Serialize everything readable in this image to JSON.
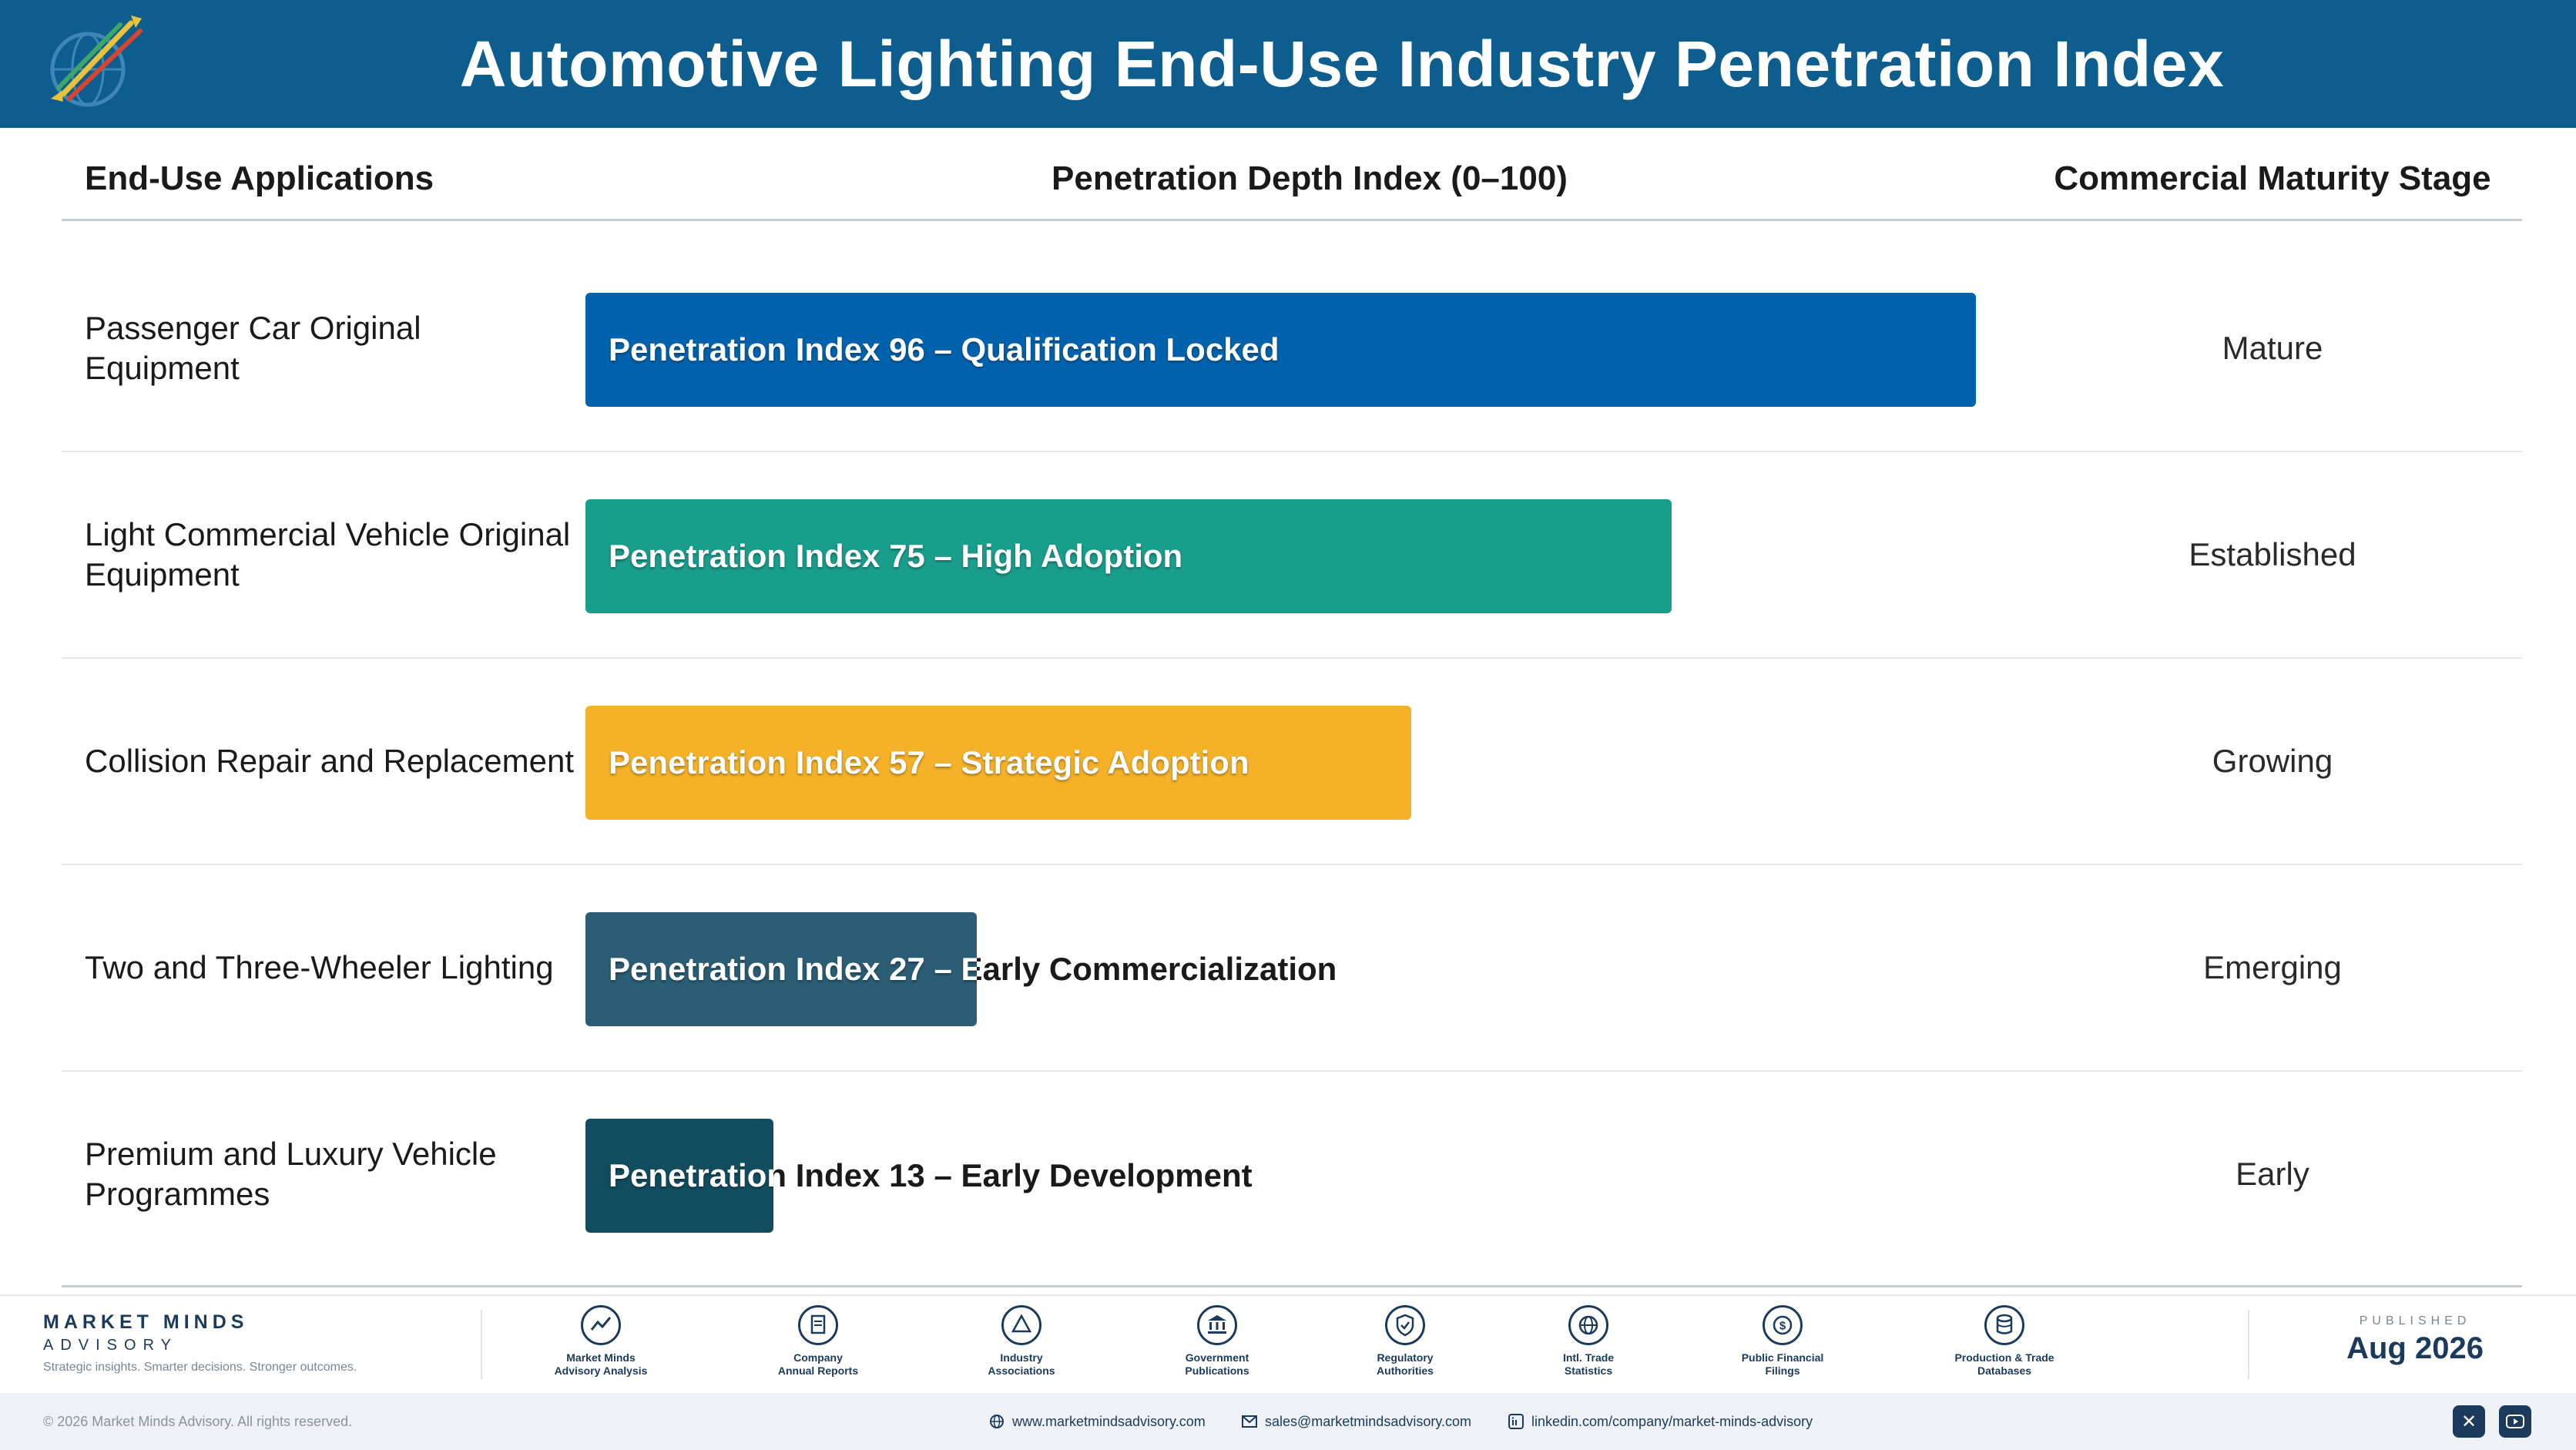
{
  "header": {
    "title": "Automotive Lighting End-Use Industry Penetration Index"
  },
  "columns": {
    "apps": "End-Use Applications",
    "depth": "Penetration Depth Index (0–100)",
    "stage": "Commercial Maturity Stage"
  },
  "rows": [
    {
      "app": "Passenger Car Original Equipment",
      "bar_label": "Penetration Index 96 – Qualification Locked",
      "stage": "Mature"
    },
    {
      "app": "Light Commercial Vehicle Original Equipment",
      "bar_label": "Penetration Index 75 – High Adoption",
      "stage": "Established"
    },
    {
      "app": "Collision Repair and Replacement",
      "bar_label": "Penetration Index 57 – Strategic Adoption",
      "stage": "Growing"
    },
    {
      "app": "Two and Three-Wheeler Lighting",
      "bar_label": "Penetration Index 27 – Early Commercialization",
      "stage": "Emerging"
    },
    {
      "app": "Premium and Luxury Vehicle Programmes",
      "bar_label": "Penetration Index 13 – Early Development",
      "stage": "Early"
    }
  ],
  "chart_data": {
    "type": "bar",
    "orientation": "horizontal",
    "title": "Automotive Lighting End-Use Industry Penetration Index",
    "xlabel": "Penetration Depth Index (0–100)",
    "xlim": [
      0,
      100
    ],
    "categories": [
      "Passenger Car Original Equipment",
      "Light Commercial Vehicle Original Equipment",
      "Collision Repair and Replacement",
      "Two and Three-Wheeler Lighting",
      "Premium and Luxury Vehicle Programmes"
    ],
    "values": [
      96,
      75,
      57,
      27,
      13
    ],
    "colors": [
      "#0062ad",
      "#1a9e8c",
      "#f5b228",
      "#2b5d74",
      "#114d5f"
    ],
    "grid": false
  },
  "footer": {
    "brand_name": "MARKET MINDS",
    "brand_sub": "ADVISORY",
    "brand_tagline": "Strategic insights. Smarter decisions. Stronger outcomes.",
    "sources": [
      {
        "line1": "Market Minds",
        "line2": "Advisory Analysis",
        "icon": "trend-icon"
      },
      {
        "line1": "Company",
        "line2": "Annual Reports",
        "icon": "document-icon"
      },
      {
        "line1": "Industry",
        "line2": "Associations",
        "icon": "network-icon"
      },
      {
        "line1": "Government",
        "line2": "Publications",
        "icon": "government-building-icon"
      },
      {
        "line1": "Regulatory",
        "line2": "Authorities",
        "icon": "shield-icon"
      },
      {
        "line1": "Intl. Trade",
        "line2": "Statistics",
        "icon": "globe-icon"
      },
      {
        "line1": "Public Financial",
        "line2": "Filings",
        "icon": "coin-icon"
      },
      {
        "line1": "Production & Trade",
        "line2": "Databases",
        "icon": "database-icon"
      }
    ],
    "published_kicker": "PUBLISHED",
    "published_date": "Aug 2026",
    "copyright": "© 2026 Market Minds Advisory. All rights reserved.",
    "website": "www.marketmindsadvisory.com",
    "email": "sales@marketmindsadvisory.com",
    "linkedin": "linkedin.com/company/market-minds-advisory"
  }
}
